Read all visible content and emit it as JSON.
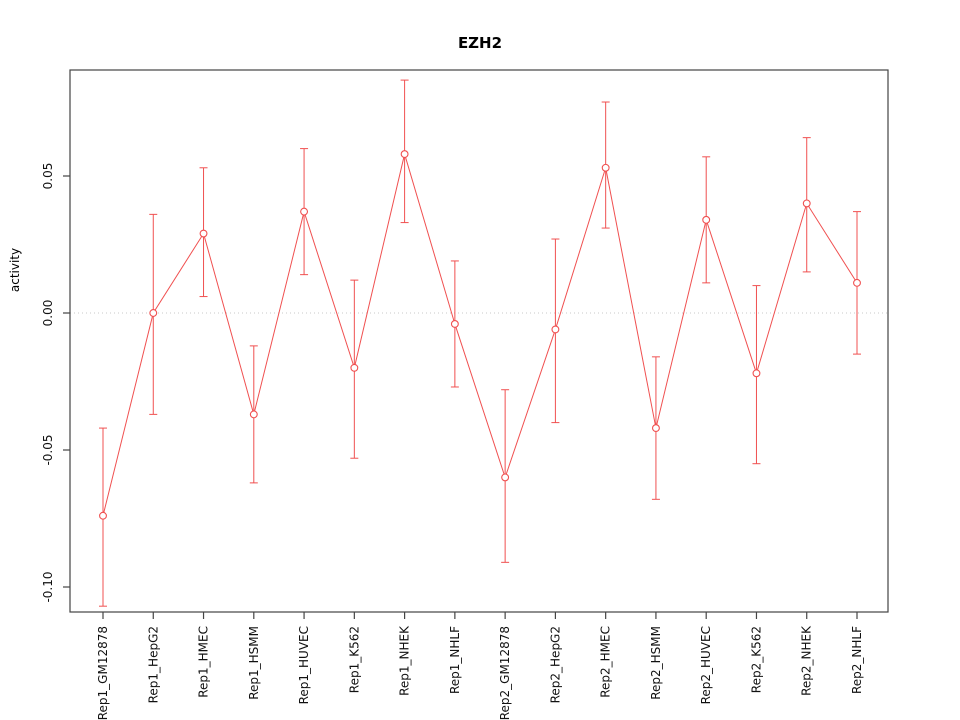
{
  "chart_data": {
    "type": "line",
    "title": "EZH2",
    "xlabel": "",
    "ylabel": "activity",
    "grid": "horizontal dotted line at y=0 only",
    "legend_position": "none",
    "ylim": [
      -0.109,
      0.089
    ],
    "yticks": [
      {
        "label": "-0.10",
        "value": -0.1
      },
      {
        "label": "-0.05",
        "value": -0.05
      },
      {
        "label": "0.00",
        "value": 0.0
      },
      {
        "label": "0.05",
        "value": 0.05
      }
    ],
    "categories": [
      "Rep1_GM12878",
      "Rep1_HepG2",
      "Rep1_HMEC",
      "Rep1_HSMM",
      "Rep1_HUVEC",
      "Rep1_K562",
      "Rep1_NHEK",
      "Rep1_NHLF",
      "Rep2_GM12878",
      "Rep2_HepG2",
      "Rep2_HMEC",
      "Rep2_HSMM",
      "Rep2_HUVEC",
      "Rep2_K562",
      "Rep2_NHEK",
      "Rep2_NHLF"
    ],
    "series": [
      {
        "name": "activity",
        "marker": "open-circle",
        "values": [
          -0.074,
          0.0,
          0.029,
          -0.037,
          0.037,
          -0.02,
          0.058,
          -0.004,
          -0.06,
          -0.006,
          0.053,
          -0.042,
          0.034,
          -0.022,
          0.04,
          0.011
        ],
        "lower": [
          -0.107,
          -0.037,
          0.006,
          -0.062,
          0.014,
          -0.053,
          0.033,
          -0.027,
          -0.091,
          -0.04,
          0.031,
          -0.068,
          0.011,
          -0.055,
          0.015,
          -0.015
        ],
        "upper": [
          -0.042,
          0.036,
          0.053,
          -0.012,
          0.06,
          0.012,
          0.085,
          0.019,
          -0.028,
          0.027,
          0.077,
          -0.016,
          0.057,
          0.01,
          0.064,
          0.037
        ]
      }
    ],
    "colors": {
      "series": "#f05050",
      "axis": "#444444",
      "gridline": "#c8c8c8",
      "background": "#ffffff",
      "marker_fill": "#ffffff"
    }
  }
}
